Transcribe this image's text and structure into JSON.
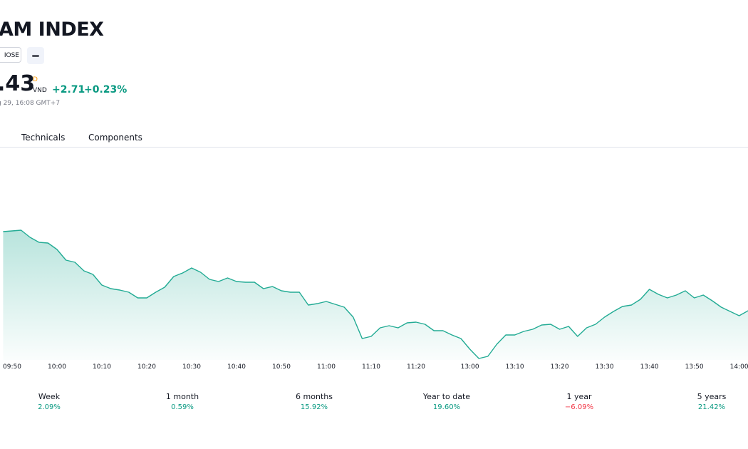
{
  "header": {
    "title": "AM INDEX",
    "exchange_badge": "IOSE",
    "price": ".43",
    "price_superscript": "D",
    "currency": "VND",
    "change": "+2.71",
    "change_percent": "+0.23%",
    "timestamp": "g 29, 16:08 GMT+7"
  },
  "tabs": [
    "Technicals",
    "Components"
  ],
  "chart_data": {
    "type": "area",
    "color": "#22ab94",
    "categories": [
      null,
      "09:50",
      null,
      null,
      null,
      null,
      "10:00",
      null,
      null,
      null,
      null,
      "10:10",
      null,
      null,
      null,
      null,
      "10:20",
      null,
      null,
      null,
      null,
      "10:30",
      null,
      null,
      null,
      null,
      "10:40",
      null,
      null,
      null,
      null,
      "10:50",
      null,
      null,
      null,
      null,
      "11:00",
      null,
      null,
      null,
      null,
      "11:10",
      null,
      null,
      null,
      null,
      "11:20",
      null,
      null,
      null,
      null,
      null,
      "13:00",
      null,
      null,
      null,
      null,
      "13:10",
      null,
      null,
      null,
      null,
      "13:20",
      null,
      null,
      null,
      null,
      "13:30",
      null,
      null,
      null,
      null,
      "13:40",
      null,
      null,
      null,
      null,
      "13:50",
      null,
      null,
      null,
      null,
      "14:00",
      null
    ],
    "values": [
      180,
      181,
      182,
      172,
      165,
      164,
      155,
      140,
      137,
      125,
      120,
      105,
      100,
      98,
      95,
      87,
      87,
      95,
      102,
      117,
      122,
      129,
      123,
      113,
      110,
      115,
      110,
      109,
      109,
      100,
      103,
      97,
      95,
      95,
      77,
      79,
      82,
      78,
      74,
      60,
      30,
      33,
      45,
      48,
      45,
      52,
      53,
      50,
      41,
      41,
      35,
      30,
      15,
      2,
      5,
      22,
      35,
      35,
      40,
      43,
      49,
      50,
      43,
      47,
      33,
      45,
      50,
      60,
      68,
      75,
      77,
      85,
      99,
      92,
      87,
      91,
      97,
      87,
      91,
      83,
      74,
      68,
      62,
      69
    ],
    "ylim": [
      0,
      295
    ]
  },
  "performance": [
    {
      "label": "Week",
      "value": "2.09%"
    },
    {
      "label": "1 month",
      "value": "0.59%"
    },
    {
      "label": "6 months",
      "value": "15.92%"
    },
    {
      "label": "Year to date",
      "value": "19.60%"
    },
    {
      "label": "1 year",
      "value": "−6.09%"
    },
    {
      "label": "5 years",
      "value": "21.42%"
    }
  ]
}
